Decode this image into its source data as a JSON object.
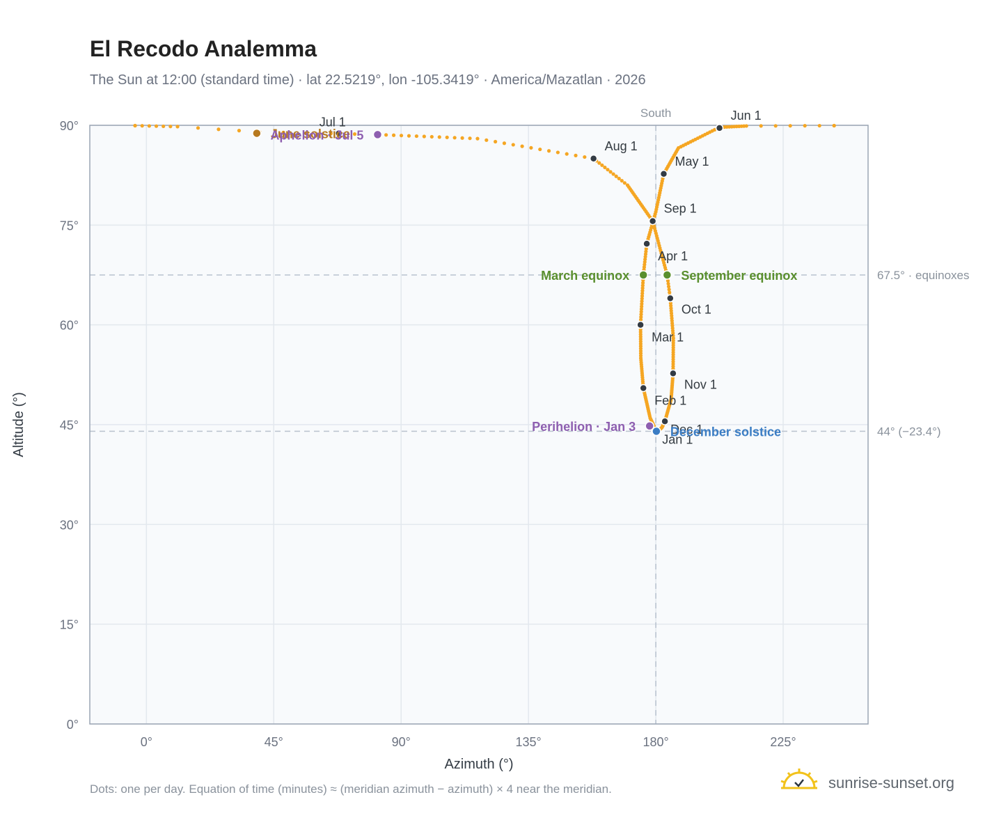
{
  "title": "El Recodo Analemma",
  "subtitle": "The Sun at 12:00 (standard time) · lat 22.5219°, lon -105.3419° · America/Mazatlan · 2026",
  "footnote": "Dots: one per day. Equation of time (minutes) ≈ (meridian azimuth − azimuth) × 4 near the meridian.",
  "brand": {
    "text": "sunrise-sunset.org",
    "icon": "sun-logo-icon"
  },
  "chart_data": {
    "type": "scatter",
    "xlabel": "Azimuth (°)",
    "ylabel": "Altitude (°)",
    "xlim": [
      -20,
      255
    ],
    "ylim": [
      0,
      90
    ],
    "x_ticks": [
      0,
      45,
      90,
      135,
      180,
      225
    ],
    "x_tick_labels": [
      "0°",
      "45°",
      "90°",
      "135°",
      "180°",
      "225°"
    ],
    "y_ticks": [
      0,
      15,
      30,
      45,
      60,
      75,
      90
    ],
    "y_tick_labels": [
      "0°",
      "15°",
      "30°",
      "45°",
      "60°",
      "75°",
      "90°"
    ],
    "grid": true,
    "meridian": {
      "x": 180,
      "label": "South"
    },
    "reference_lines": [
      {
        "y": 67.5,
        "label": "67.5° · equinoxes"
      },
      {
        "y": 44,
        "label": "44° (−23.4°)"
      }
    ],
    "series": [
      {
        "daily_path_keypoints": [
          {
            "day": 1,
            "x": 180.2,
            "y": 44.0
          },
          {
            "day": 15,
            "x": 178.0,
            "y": 46.0
          },
          {
            "day": 32,
            "x": 175.6,
            "y": 50.5
          },
          {
            "day": 46,
            "x": 174.7,
            "y": 55.0
          },
          {
            "day": 60,
            "x": 174.6,
            "y": 60.0
          },
          {
            "day": 79,
            "x": 175.6,
            "y": 67.5
          },
          {
            "day": 91,
            "x": 176.8,
            "y": 72.2
          },
          {
            "day": 105,
            "x": 180.0,
            "y": 77.0
          },
          {
            "day": 121,
            "x": 182.8,
            "y": 82.7
          },
          {
            "day": 135,
            "x": 188.0,
            "y": 86.6
          },
          {
            "day": 152,
            "x": 202.5,
            "y": 89.7
          },
          {
            "day": 163,
            "x": 212.0,
            "y": 89.9
          },
          {
            "day": 169,
            "x": 243.0,
            "y": 89.95
          },
          {
            "day": 172,
            "x": -4.0,
            "y": 89.95
          },
          {
            "day": 178,
            "x": 11.0,
            "y": 89.8
          },
          {
            "day": 182,
            "x": 40.0,
            "y": 89.0
          },
          {
            "day": 187,
            "x": 82.0,
            "y": 88.6
          },
          {
            "day": 200,
            "x": 117.0,
            "y": 88.0
          },
          {
            "day": 213,
            "x": 158.0,
            "y": 85.0
          },
          {
            "day": 225,
            "x": 170.0,
            "y": 81.0
          },
          {
            "day": 244,
            "x": 178.9,
            "y": 75.6
          },
          {
            "day": 266,
            "x": 184.0,
            "y": 67.5
          },
          {
            "day": 274,
            "x": 185.1,
            "y": 64.0
          },
          {
            "day": 290,
            "x": 186.2,
            "y": 58.0
          },
          {
            "day": 305,
            "x": 186.1,
            "y": 52.7
          },
          {
            "day": 320,
            "x": 185.4,
            "y": 48.8
          },
          {
            "day": 335,
            "x": 183.2,
            "y": 45.5
          },
          {
            "day": 345,
            "x": 182.2,
            "y": 44.6
          },
          {
            "day": 355,
            "x": 181.0,
            "y": 44.1
          },
          {
            "day": 365,
            "x": 180.3,
            "y": 44.0
          }
        ],
        "color": "#f5a623"
      }
    ],
    "month_markers": [
      {
        "label": "Jan 1",
        "x": 180.3,
        "y": 44.0
      },
      {
        "label": "Feb 1",
        "x": 175.6,
        "y": 50.5
      },
      {
        "label": "Mar 1",
        "x": 174.6,
        "y": 60.0
      },
      {
        "label": "Apr 1",
        "x": 176.8,
        "y": 72.2
      },
      {
        "label": "May 1",
        "x": 182.8,
        "y": 82.7
      },
      {
        "label": "Jun 1",
        "x": 202.5,
        "y": 89.6
      },
      {
        "label": "Jul 1",
        "x": 68.0,
        "y": 88.8
      },
      {
        "label": "Aug 1",
        "x": 158.0,
        "y": 85.0
      },
      {
        "label": "Sep 1",
        "x": 178.9,
        "y": 75.6
      },
      {
        "label": "Oct 1",
        "x": 185.1,
        "y": 64.0
      },
      {
        "label": "Nov 1",
        "x": 186.1,
        "y": 52.7
      },
      {
        "label": "Dec 1",
        "x": 183.2,
        "y": 45.5
      }
    ],
    "annotations": [
      {
        "label": "March equinox",
        "x": 175.6,
        "y": 67.5,
        "color": "#5a8f2e",
        "side": "left"
      },
      {
        "label": "September equinox",
        "x": 184.0,
        "y": 67.5,
        "color": "#5a8f2e",
        "side": "right"
      },
      {
        "label": "June solstice",
        "x": 39.0,
        "y": 88.8,
        "color": "#b7791f",
        "side": "right"
      },
      {
        "label": "December solstice",
        "x": 180.2,
        "y": 44.0,
        "color": "#3b7dc4",
        "side": "right"
      },
      {
        "label": "Perihelion · Jan 3",
        "x": 177.8,
        "y": 44.8,
        "color": "#8e5fb0",
        "side": "left"
      },
      {
        "label": "Aphelion · Jul 5",
        "x": 81.7,
        "y": 88.6,
        "color": "#8e5fb0",
        "side": "left"
      }
    ]
  }
}
